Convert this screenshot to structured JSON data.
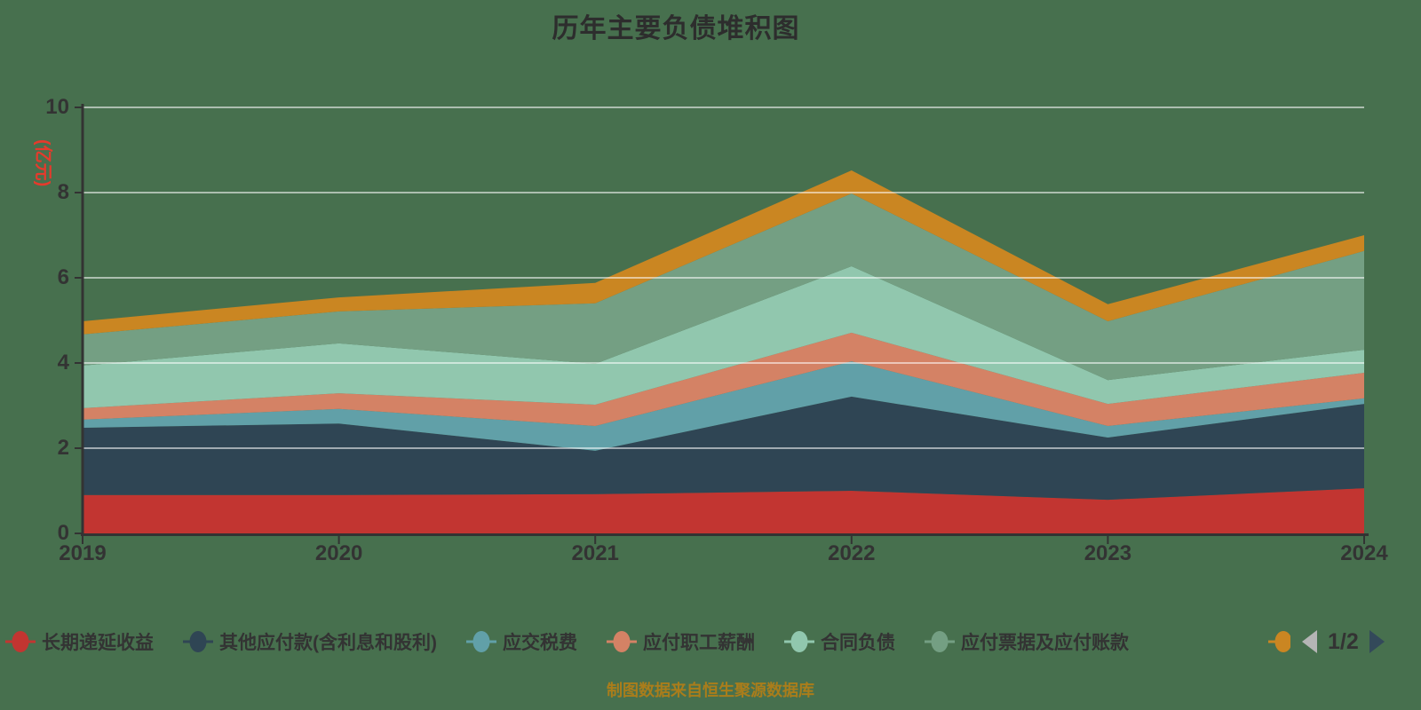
{
  "title": "历年主要负债堆积图",
  "caption": "制图数据来自恒生聚源数据库",
  "y_axis": {
    "name": "(亿元)",
    "tick_labels": [
      "0",
      "2",
      "4",
      "6",
      "8",
      "10"
    ],
    "tick_values": [
      0,
      2,
      4,
      6,
      8,
      10
    ],
    "min": 0,
    "max": 10
  },
  "x_axis": {
    "tick_labels": [
      "2019",
      "2020",
      "2021",
      "2022",
      "2023",
      "2024"
    ]
  },
  "chart_data": {
    "type": "area",
    "stacked": true,
    "title": "历年主要负债堆积图",
    "ylabel": "(亿元)",
    "ylim": [
      0,
      10
    ],
    "grid": true,
    "legend_position": "bottom",
    "x": [
      "2019",
      "2020",
      "2021",
      "2022",
      "2023",
      "2024"
    ],
    "series": [
      {
        "name": "长期递延收益",
        "color": "#c23531",
        "values": [
          0.9,
          0.9,
          0.92,
          1.0,
          0.79,
          1.06
        ]
      },
      {
        "name": "其他应付款(含利息和股利)",
        "color": "#2f4554",
        "values": [
          1.58,
          1.68,
          1.02,
          2.21,
          1.46,
          1.98
        ]
      },
      {
        "name": "应交税费",
        "color": "#61a0a8",
        "values": [
          0.19,
          0.34,
          0.58,
          0.83,
          0.27,
          0.13
        ]
      },
      {
        "name": "应付职工薪酬",
        "color": "#d48265",
        "values": [
          0.27,
          0.37,
          0.5,
          0.67,
          0.52,
          0.6
        ]
      },
      {
        "name": "合同负债",
        "color": "#91c7ae",
        "values": [
          1.0,
          1.17,
          0.96,
          1.56,
          0.56,
          0.54
        ]
      },
      {
        "name": "应付票据及应付账款",
        "color": "#749f83",
        "values": [
          0.73,
          0.75,
          1.42,
          1.71,
          1.38,
          2.32
        ]
      },
      {
        "name": "",
        "color": "#ca8622",
        "values": [
          0.31,
          0.33,
          0.48,
          0.54,
          0.4,
          0.37
        ],
        "legend_label_visible": false
      }
    ],
    "stack_totals": [
      4.98,
      5.54,
      5.88,
      8.52,
      5.38,
      7.0
    ]
  },
  "legend": {
    "items": [
      {
        "label": "长期递延收益",
        "color": "#c23531"
      },
      {
        "label": "其他应付款(含利息和股利)",
        "color": "#2f4554"
      },
      {
        "label": "应交税费",
        "color": "#61a0a8"
      },
      {
        "label": "应付职工薪酬",
        "color": "#d48265"
      },
      {
        "label": "合同负债",
        "color": "#91c7ae"
      },
      {
        "label": "应付票据及应付账款",
        "color": "#749f83"
      }
    ],
    "overflow_item": {
      "label": "",
      "color": "#ca8622"
    },
    "pagination": {
      "label": "1/2",
      "prev_icon": "left-triangle-icon",
      "next_icon": "right-triangle-icon"
    }
  },
  "colors": {
    "background": "#47704E",
    "axis": "#333333",
    "gridline": "rgba(255,255,255,0.55)",
    "title_text": "#2d2d2d",
    "tick_text": "#333333",
    "axis_name_text": "#e53a2c",
    "caption_text": "#aa7d1b",
    "pager_prev": "#b5b5b5",
    "pager_next": "#33495a"
  }
}
